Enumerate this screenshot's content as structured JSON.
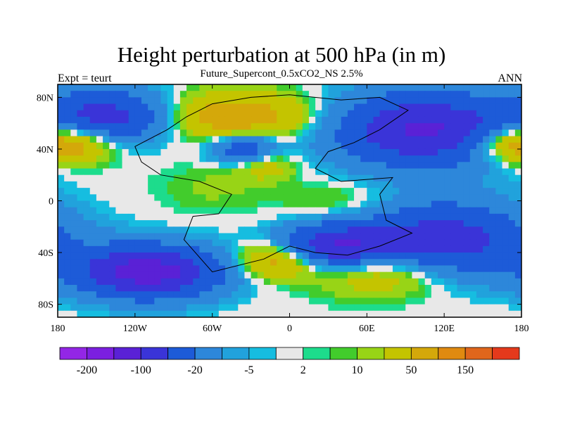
{
  "chart_data": {
    "type": "heatmap",
    "title": "Height perturbation at 500 hPa (in m)",
    "subtitle": "Future_Supercont_0.5xCO2_NS 2.5%",
    "left_label": "Expt = teurt",
    "right_label": "ANN",
    "x_ticks": [
      "180",
      "120W",
      "60W",
      "0",
      "60E",
      "120E",
      "180"
    ],
    "y_ticks": [
      "80N",
      "40N",
      "0",
      "40S",
      "80S"
    ],
    "xlim": [
      -180,
      180
    ],
    "ylim": [
      -90,
      90
    ],
    "colorbar": {
      "labels": [
        "-200",
        "-100",
        "-20",
        "-5",
        "2",
        "10",
        "50",
        "150"
      ],
      "colors": [
        "#9326e6",
        "#7b1fe0",
        "#5a21d6",
        "#3a34d8",
        "#1d5bd8",
        "#2d87da",
        "#21a2dc",
        "#16bde0",
        "#e8e8e8",
        "#1ddc8c",
        "#42cc2c",
        "#98d416",
        "#c4c400",
        "#d4a80a",
        "#e08a10",
        "#e0661c",
        "#e4391c"
      ]
    },
    "field_blobs": [
      {
        "lon": -140,
        "lat": 65,
        "rx": 48,
        "ry": 20,
        "amp": -120
      },
      {
        "lon": -110,
        "lat": -55,
        "rx": 55,
        "ry": 20,
        "amp": -180
      },
      {
        "lon": 105,
        "lat": 55,
        "rx": 70,
        "ry": 28,
        "amp": -160
      },
      {
        "lon": 120,
        "lat": -30,
        "rx": 65,
        "ry": 28,
        "amp": -130
      },
      {
        "lon": -35,
        "lat": 40,
        "rx": 25,
        "ry": 12,
        "amp": -90
      },
      {
        "lon": 35,
        "lat": -35,
        "rx": 45,
        "ry": 16,
        "amp": -140
      },
      {
        "lon": -40,
        "lat": 65,
        "rx": 60,
        "ry": 18,
        "amp": 80
      },
      {
        "lon": -175,
        "lat": 45,
        "rx": 40,
        "ry": 16,
        "amp": 70
      },
      {
        "lon": 178,
        "lat": 45,
        "rx": 35,
        "ry": 14,
        "amp": 60
      },
      {
        "lon": -10,
        "lat": -45,
        "rx": 30,
        "ry": 14,
        "amp": 85
      },
      {
        "lon": 75,
        "lat": -55,
        "rx": 50,
        "ry": 18,
        "amp": 60
      },
      {
        "lon": -20,
        "lat": 28,
        "rx": 25,
        "ry": 12,
        "amp": 40
      },
      {
        "lon": 40,
        "lat": 0,
        "rx": 45,
        "ry": 15,
        "amp": 18
      },
      {
        "lon": -60,
        "lat": 10,
        "rx": 40,
        "ry": 18,
        "amp": 12
      }
    ],
    "continent_outline": [
      [
        -120,
        42
      ],
      [
        -95,
        55
      ],
      [
        -80,
        65
      ],
      [
        -60,
        75
      ],
      [
        -30,
        80
      ],
      [
        0,
        82
      ],
      [
        40,
        78
      ],
      [
        70,
        80
      ],
      [
        92,
        70
      ],
      [
        70,
        55
      ],
      [
        50,
        45
      ],
      [
        30,
        38
      ],
      [
        20,
        25
      ],
      [
        40,
        15
      ],
      [
        80,
        18
      ],
      [
        70,
        5
      ],
      [
        75,
        -15
      ],
      [
        95,
        -25
      ],
      [
        70,
        -35
      ],
      [
        45,
        -42
      ],
      [
        20,
        -40
      ],
      [
        0,
        -35
      ],
      [
        -20,
        -45
      ],
      [
        -60,
        -55
      ],
      [
        -82,
        -30
      ],
      [
        -75,
        -12
      ],
      [
        -55,
        -10
      ],
      [
        -45,
        5
      ],
      [
        -70,
        15
      ],
      [
        -100,
        20
      ],
      [
        -115,
        30
      ],
      [
        -120,
        42
      ]
    ]
  }
}
